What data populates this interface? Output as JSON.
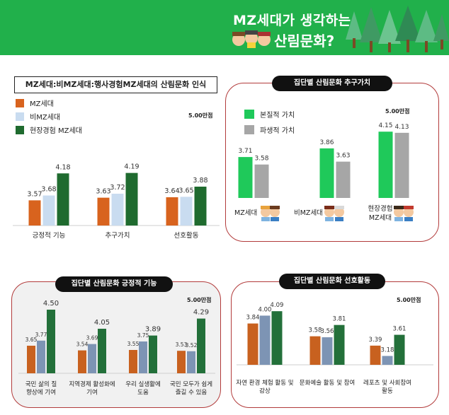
{
  "header": {
    "line1": "MZ세대가 생각하는",
    "line2": "산림문화?"
  },
  "colors": {
    "banner": "#21b04b",
    "mz": "#d8631e",
    "bi_mz": "#c9dcf0",
    "field_mz": "#1f6b2f",
    "essential": "#1fc95a",
    "derivative": "#a6a6a6",
    "positive_mz": "#c8611f",
    "positive_bi": "#7d94b4",
    "positive_field": "#23703a",
    "pref_mz": "#c8611f",
    "pref_bi": "#7d94b4",
    "pref_field": "#23703a",
    "panel_border": "#b23b3b"
  },
  "panel_main": {
    "title": "MZ세대:비MZ세대:행사경험MZ세대의 산림문화 인식",
    "legend": [
      "MZ세대",
      "비MZ세대",
      "현장경험 MZ세대"
    ],
    "scale_label": "5.00만점"
  },
  "panel_value": {
    "title": "집단별 산림문화 추구가치",
    "legend": [
      "본질적 가치",
      "파생적 가치"
    ],
    "scale_label": "5.00만점"
  },
  "panel_positive": {
    "title": "집단별 산림문화 긍정적 기능",
    "scale_label": "5.00만점"
  },
  "panel_preference": {
    "title": "집단별 산림문화 선호활동",
    "scale_label": "5.00만점"
  },
  "chart_data": [
    {
      "type": "bar",
      "title": "MZ세대:비MZ세대:행사경험MZ세대의 산림문화 인식",
      "categories": [
        "긍정적 기능",
        "추구가치",
        "선호활동"
      ],
      "series": [
        {
          "name": "MZ세대",
          "values": [
            3.57,
            3.63,
            3.64
          ]
        },
        {
          "name": "비MZ세대",
          "values": [
            3.68,
            3.72,
            3.65
          ]
        },
        {
          "name": "현장경험 MZ세대",
          "values": [
            4.18,
            4.19,
            3.88
          ]
        }
      ],
      "ylim": [
        3.0,
        4.6
      ]
    },
    {
      "type": "bar",
      "title": "집단별 산림문화 추구가치",
      "categories": [
        "MZ세대",
        "비MZ세대",
        "현장경험 MZ세대"
      ],
      "series": [
        {
          "name": "본질적 가치",
          "values": [
            3.71,
            3.86,
            4.15
          ]
        },
        {
          "name": "파생적 가치",
          "values": [
            3.58,
            3.63,
            4.13
          ]
        }
      ],
      "ylim": [
        3.0,
        4.3
      ]
    },
    {
      "type": "bar",
      "title": "집단별 산림문화 긍정적 기능",
      "categories": [
        "국민 삶의 질 향상에 기여",
        "지역경제 활성화에 기여",
        "우리 실생활에 도움",
        "국민 모두가 쉽게 즐길 수 있음"
      ],
      "series": [
        {
          "values": [
            3.65,
            3.54,
            3.55,
            3.53
          ]
        },
        {
          "values": [
            3.77,
            3.69,
            3.75,
            3.52
          ]
        },
        {
          "values": [
            4.5,
            4.05,
            3.89,
            4.29
          ]
        }
      ],
      "ylim": [
        3.0,
        4.6
      ]
    },
    {
      "type": "bar",
      "title": "집단별 산림문화 선호활동",
      "categories": [
        "자연 환경 체험 활동 및 감상",
        "문화예술 활동 및 참여",
        "레포츠 및 사회참여 활동"
      ],
      "series": [
        {
          "values": [
            3.84,
            3.58,
            3.39
          ]
        },
        {
          "values": [
            4.0,
            3.56,
            3.18
          ]
        },
        {
          "values": [
            4.09,
            3.81,
            3.61
          ]
        }
      ],
      "ylim": [
        3.0,
        4.15
      ]
    }
  ]
}
